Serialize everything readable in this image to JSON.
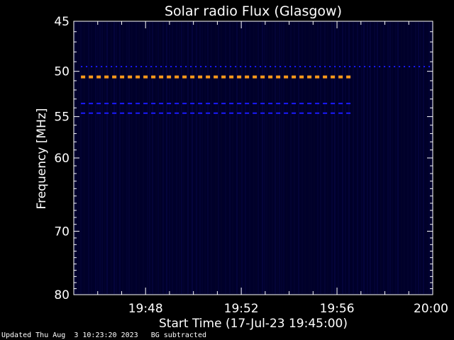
{
  "chart_data": {
    "type": "heatmap",
    "title": "Solar radio Flux (Glasgow)",
    "xlabel": "Start Time (17-Jul-23 19:45:00)",
    "ylabel": "Frequency [MHz]",
    "x_unit": "minutes after 19:45:00",
    "xlim": [
      0,
      15
    ],
    "ylim": [
      45,
      80
    ],
    "y_scale": "log",
    "x_ticks": [
      {
        "value": 3,
        "label": "19:48"
      },
      {
        "value": 7,
        "label": "19:52"
      },
      {
        "value": 11,
        "label": "19:56"
      },
      {
        "value": 15,
        "label": "20:00"
      }
    ],
    "y_ticks": [
      45,
      50,
      55,
      60,
      70,
      80
    ],
    "background_color": "#00002a",
    "bands": [
      {
        "freq": 49.5,
        "x_start": 0.3,
        "x_end": 15,
        "color": "#1a1aff",
        "style": "dotted"
      },
      {
        "freq": 50.6,
        "x_start": 0.3,
        "x_end": 11.7,
        "color": "#ff9a1a",
        "style": "dashed"
      },
      {
        "freq": 53.5,
        "x_start": 0.3,
        "x_end": 11.7,
        "color": "#1a1aff",
        "style": "dashed"
      },
      {
        "freq": 54.6,
        "x_start": 0.3,
        "x_end": 11.7,
        "color": "#1a1aff",
        "style": "dashed"
      }
    ],
    "grid": false,
    "legend": "none"
  },
  "footer": {
    "updated": "Updated Thu Aug  3 10:23:20 2023",
    "note": "BG subtracted"
  }
}
